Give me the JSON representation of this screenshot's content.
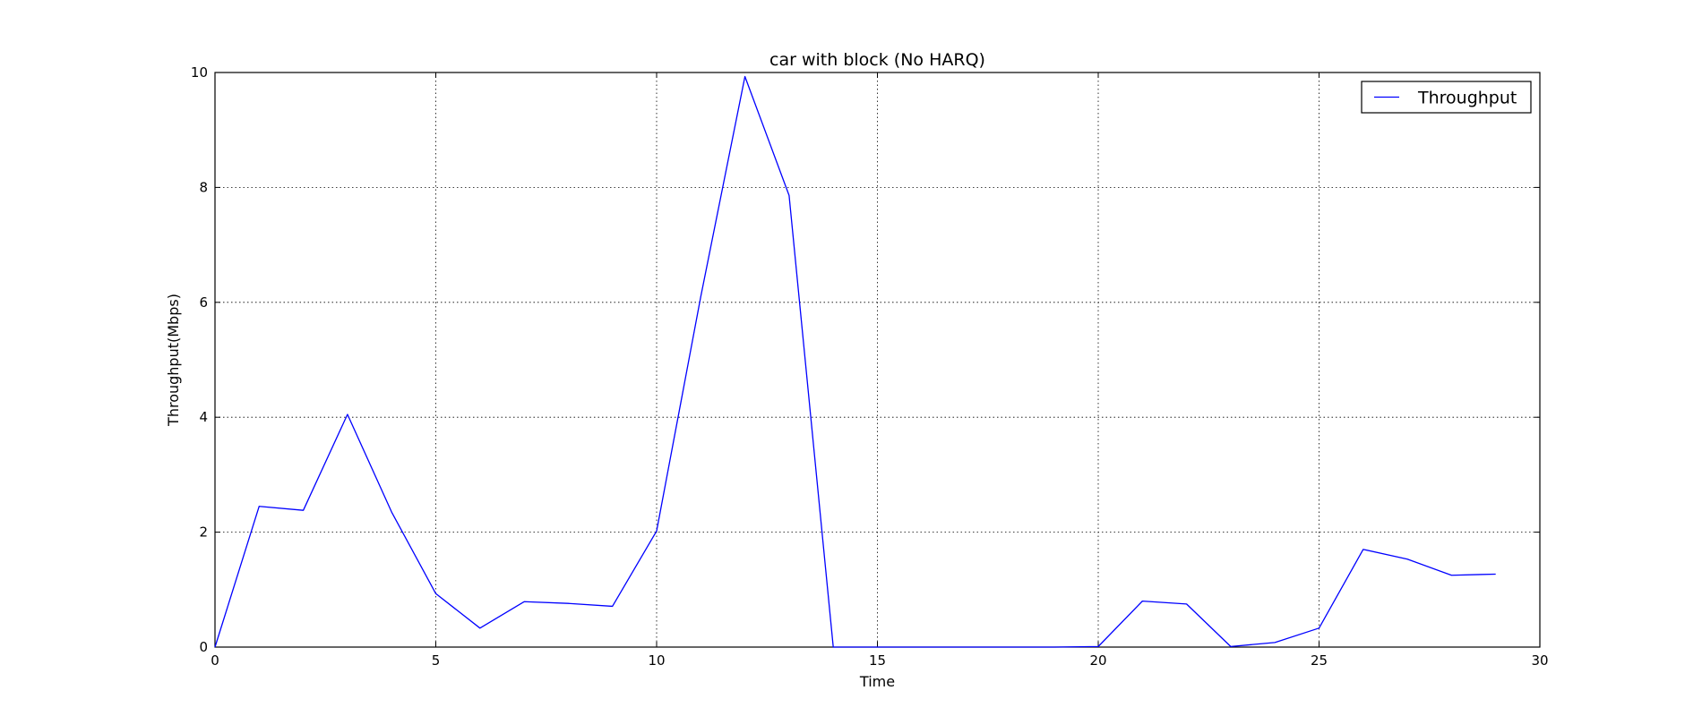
{
  "chart_data": {
    "type": "line",
    "title": "car with block (No HARQ)",
    "xlabel": "Time",
    "ylabel": "Throughput(Mbps)",
    "xlim": [
      0,
      30
    ],
    "ylim": [
      0,
      10
    ],
    "xticks": [
      0,
      5,
      10,
      15,
      20,
      25,
      30
    ],
    "yticks": [
      0,
      2,
      4,
      6,
      8,
      10
    ],
    "grid": true,
    "legend_position": "top-right",
    "series": [
      {
        "name": "Throughput",
        "color": "#0000ff",
        "x": [
          0,
          1,
          2,
          3,
          4,
          5,
          6,
          7,
          8,
          9,
          10,
          11,
          12,
          13,
          14,
          15,
          16,
          17,
          18,
          19,
          20,
          21,
          22,
          23,
          24,
          25,
          26,
          27,
          28,
          29
        ],
        "y": [
          0.0,
          2.45,
          2.38,
          4.05,
          2.35,
          0.93,
          0.33,
          0.79,
          0.76,
          0.71,
          2.02,
          6.1,
          9.93,
          7.86,
          0.0,
          0.0,
          0.0,
          0.0,
          0.0,
          0.0,
          0.01,
          0.8,
          0.75,
          0.01,
          0.08,
          0.33,
          1.7,
          1.53,
          1.25,
          1.27
        ]
      }
    ]
  }
}
